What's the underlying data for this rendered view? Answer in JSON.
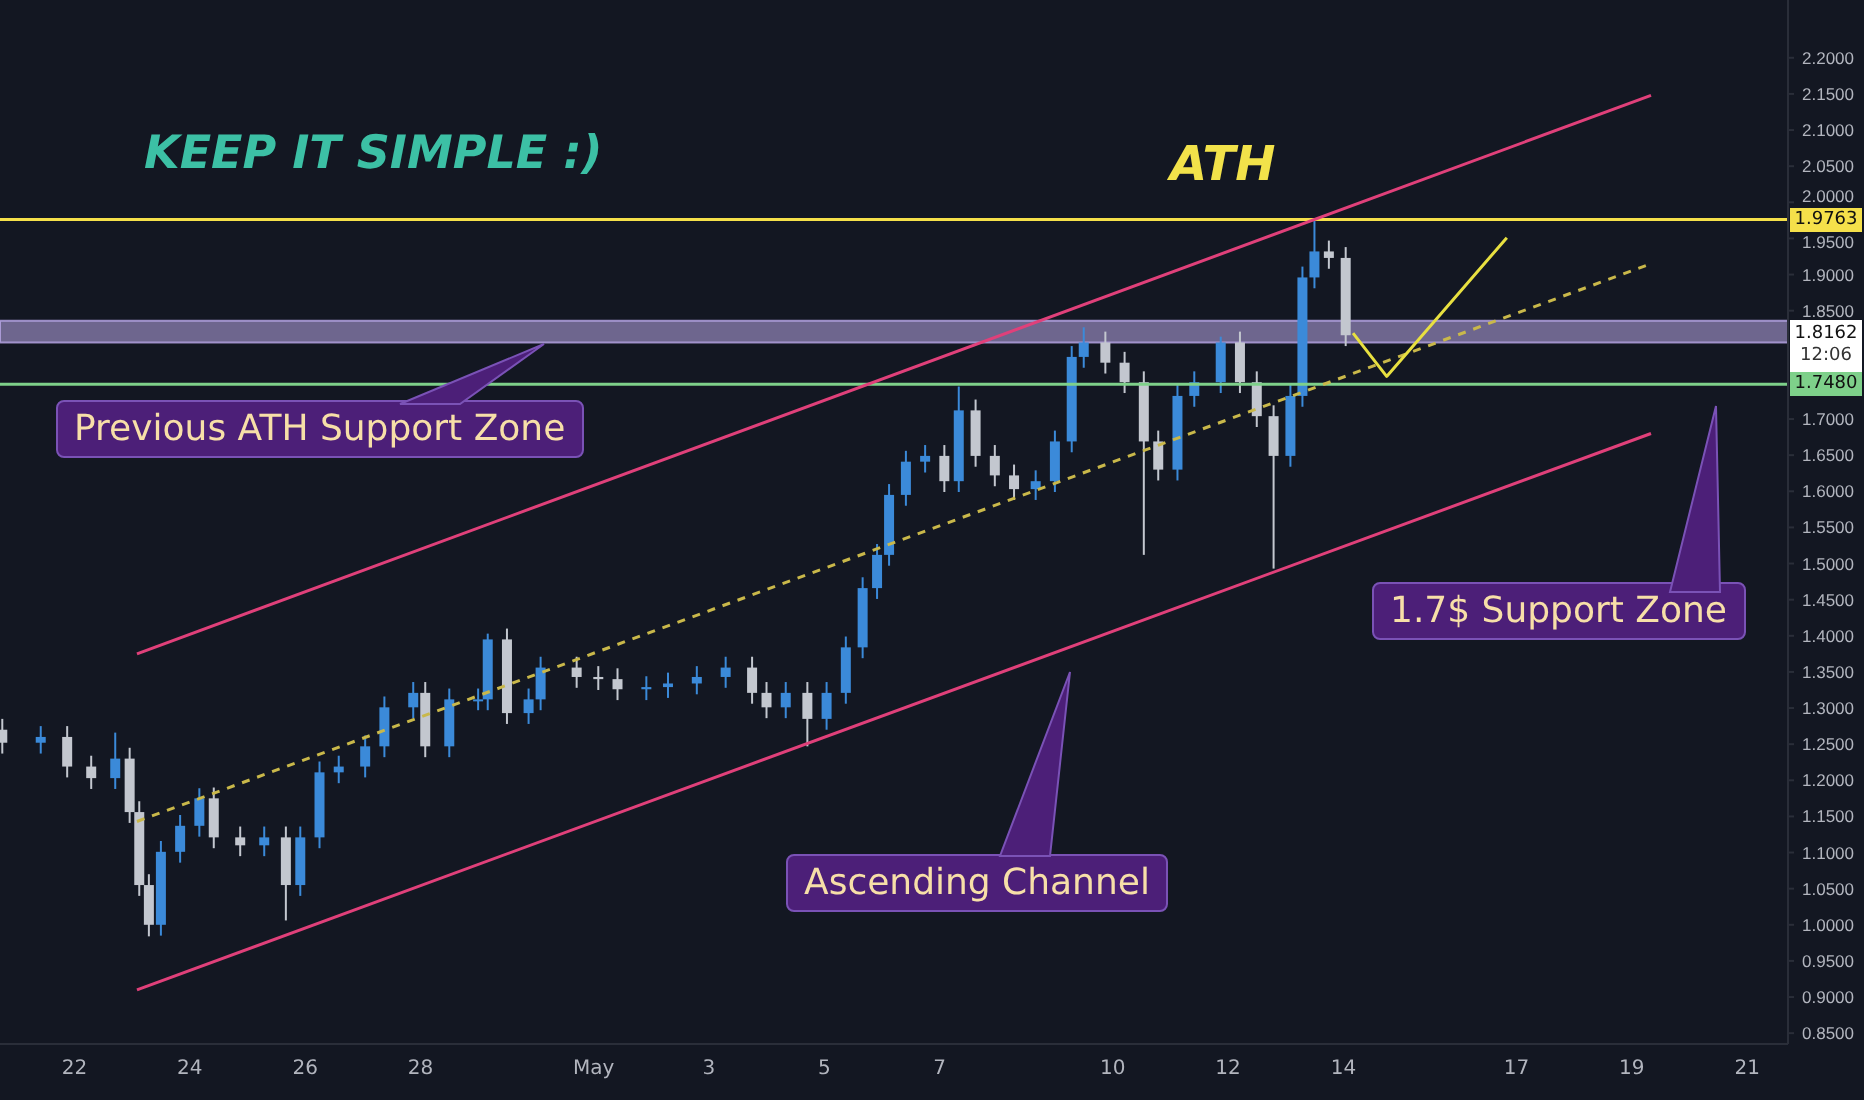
{
  "chart_data": {
    "type": "candlestick",
    "x": [
      "--04-20T18:00",
      "--04-21T10:00",
      "--04-21T21:00",
      "--04-22T07:00",
      "--04-22T17:00",
      "--04-22T23:00",
      "--04-23T03:00",
      "--04-23T07:00",
      "--04-23T12:00",
      "--04-23T20:00",
      "--04-24T04:00",
      "--04-24T10:00",
      "--04-24T21:00",
      "--04-25T07:00",
      "--04-25T16:00",
      "--04-25T22:00",
      "--04-26T06:00",
      "--04-26T14:00",
      "--04-27T01:00",
      "--04-27T09:00",
      "--04-27T21:00",
      "--04-28T02:00",
      "--04-28T12:00",
      "--04-29T00:00",
      "--04-29T04:00",
      "--04-29T12:00",
      "--04-29T21:00",
      "--04-30T02:00",
      "--04-30T17:00",
      "--05-01T02:00",
      "--05-01T10:00",
      "--05-01T22:00",
      "--05-02T07:00",
      "--05-02T19:00",
      "--05-03T07:00",
      "--05-03T18:00",
      "--05-04T00:00",
      "--05-04T08:00",
      "--05-04T17:00",
      "--05-05T01:00",
      "--05-05T09:00",
      "--05-05T16:00",
      "--05-05T22:00",
      "--05-06T03:00",
      "--05-06T10:00",
      "--05-06T18:00",
      "--05-07T02:00",
      "--05-07T08:00",
      "--05-07T15:00",
      "--05-07T23:00",
      "--05-08T07:00",
      "--05-08T16:00",
      "--05-09T00:00",
      "--05-09T07:00",
      "--05-09T12:00",
      "--05-09T21:00",
      "--05-10T05:00",
      "--05-10T13:00",
      "--05-10T19:00",
      "--05-11T03:00",
      "--05-11T10:00",
      "--05-11T21:00",
      "--05-12T05:00",
      "--05-12T12:00",
      "--05-12T19:00",
      "--05-13T02:00",
      "--05-13T07:00",
      "--05-13T12:00",
      "--05-13T18:00",
      "--05-14T01:00"
    ],
    "ohlc": [
      [
        1.27,
        1.285,
        1.237,
        1.252
      ],
      [
        1.252,
        1.275,
        1.237,
        1.26
      ],
      [
        1.26,
        1.275,
        1.204,
        1.219
      ],
      [
        1.219,
        1.234,
        1.188,
        1.203
      ],
      [
        1.203,
        1.266,
        1.188,
        1.23
      ],
      [
        1.23,
        1.245,
        1.141,
        1.156
      ],
      [
        1.156,
        1.171,
        1.04,
        1.055
      ],
      [
        1.055,
        1.07,
        0.984,
        1.0
      ],
      [
        1.0,
        1.116,
        0.985,
        1.101
      ],
      [
        1.101,
        1.152,
        1.086,
        1.137
      ],
      [
        1.137,
        1.189,
        1.122,
        1.175
      ],
      [
        1.175,
        1.19,
        1.106,
        1.121
      ],
      [
        1.121,
        1.136,
        1.095,
        1.11
      ],
      [
        1.11,
        1.136,
        1.095,
        1.121
      ],
      [
        1.121,
        1.136,
        1.006,
        1.055
      ],
      [
        1.055,
        1.136,
        1.04,
        1.121
      ],
      [
        1.121,
        1.226,
        1.106,
        1.211
      ],
      [
        1.211,
        1.234,
        1.196,
        1.219
      ],
      [
        1.219,
        1.262,
        1.204,
        1.247
      ],
      [
        1.247,
        1.316,
        1.232,
        1.301
      ],
      [
        1.301,
        1.336,
        1.286,
        1.321
      ],
      [
        1.321,
        1.336,
        1.232,
        1.247
      ],
      [
        1.247,
        1.327,
        1.232,
        1.312
      ],
      [
        1.312,
        1.327,
        1.297,
        1.312
      ],
      [
        1.312,
        1.403,
        1.297,
        1.395
      ],
      [
        1.395,
        1.41,
        1.278,
        1.293
      ],
      [
        1.293,
        1.327,
        1.278,
        1.312
      ],
      [
        1.312,
        1.371,
        1.297,
        1.356
      ],
      [
        1.356,
        1.371,
        1.328,
        1.343
      ],
      [
        1.343,
        1.358,
        1.325,
        1.34
      ],
      [
        1.34,
        1.355,
        1.311,
        1.326
      ],
      [
        1.326,
        1.344,
        1.311,
        1.329
      ],
      [
        1.329,
        1.349,
        1.314,
        1.334
      ],
      [
        1.334,
        1.358,
        1.319,
        1.343
      ],
      [
        1.343,
        1.371,
        1.328,
        1.356
      ],
      [
        1.356,
        1.371,
        1.306,
        1.321
      ],
      [
        1.321,
        1.336,
        1.286,
        1.301
      ],
      [
        1.301,
        1.336,
        1.286,
        1.321
      ],
      [
        1.321,
        1.336,
        1.247,
        1.285
      ],
      [
        1.285,
        1.336,
        1.27,
        1.321
      ],
      [
        1.321,
        1.399,
        1.306,
        1.384
      ],
      [
        1.384,
        1.481,
        1.369,
        1.466
      ],
      [
        1.466,
        1.527,
        1.451,
        1.512
      ],
      [
        1.512,
        1.61,
        1.497,
        1.595
      ],
      [
        1.595,
        1.656,
        1.58,
        1.641
      ],
      [
        1.641,
        1.664,
        1.626,
        1.649
      ],
      [
        1.649,
        1.664,
        1.599,
        1.614
      ],
      [
        1.614,
        1.745,
        1.599,
        1.712
      ],
      [
        1.712,
        1.727,
        1.634,
        1.649
      ],
      [
        1.649,
        1.664,
        1.607,
        1.622
      ],
      [
        1.622,
        1.637,
        1.588,
        1.603
      ],
      [
        1.603,
        1.629,
        1.588,
        1.614
      ],
      [
        1.614,
        1.684,
        1.599,
        1.669
      ],
      [
        1.669,
        1.801,
        1.654,
        1.786
      ],
      [
        1.786,
        1.827,
        1.771,
        1.806
      ],
      [
        1.806,
        1.821,
        1.763,
        1.778
      ],
      [
        1.778,
        1.793,
        1.736,
        1.751
      ],
      [
        1.751,
        1.766,
        1.512,
        1.669
      ],
      [
        1.669,
        1.684,
        1.615,
        1.63
      ],
      [
        1.63,
        1.747,
        1.615,
        1.732
      ],
      [
        1.732,
        1.766,
        1.717,
        1.751
      ],
      [
        1.751,
        1.814,
        1.736,
        1.806
      ],
      [
        1.806,
        1.821,
        1.736,
        1.751
      ],
      [
        1.751,
        1.766,
        1.689,
        1.704
      ],
      [
        1.704,
        1.719,
        1.493,
        1.649
      ],
      [
        1.649,
        1.747,
        1.634,
        1.732
      ],
      [
        1.732,
        1.911,
        1.717,
        1.896
      ],
      [
        1.896,
        1.976,
        1.881,
        1.932
      ],
      [
        1.932,
        1.947,
        1.908,
        1.923
      ],
      [
        1.923,
        1.938,
        1.801,
        1.816
      ]
    ],
    "colors": [
      "#c3c7cf",
      "#3b8ad9",
      "#c3c7cf",
      "#c3c7cf",
      "#3b8ad9",
      "#c3c7cf",
      "#c3c7cf",
      "#c3c7cf",
      "#3b8ad9",
      "#3b8ad9",
      "#3b8ad9",
      "#c3c7cf",
      "#c3c7cf",
      "#3b8ad9",
      "#c3c7cf",
      "#3b8ad9",
      "#3b8ad9",
      "#3b8ad9",
      "#3b8ad9",
      "#3b8ad9",
      "#3b8ad9",
      "#c3c7cf",
      "#3b8ad9",
      "#3b8ad9",
      "#3b8ad9",
      "#c3c7cf",
      "#3b8ad9",
      "#3b8ad9",
      "#c3c7cf",
      "#c3c7cf",
      "#c3c7cf",
      "#3b8ad9",
      "#3b8ad9",
      "#3b8ad9",
      "#3b8ad9",
      "#c3c7cf",
      "#c3c7cf",
      "#3b8ad9",
      "#c3c7cf",
      "#3b8ad9",
      "#3b8ad9",
      "#3b8ad9",
      "#3b8ad9",
      "#3b8ad9",
      "#3b8ad9",
      "#3b8ad9",
      "#c3c7cf",
      "#3b8ad9",
      "#c3c7cf",
      "#c3c7cf",
      "#c3c7cf",
      "#3b8ad9",
      "#3b8ad9",
      "#3b8ad9",
      "#3b8ad9",
      "#c3c7cf",
      "#c3c7cf",
      "#c3c7cf",
      "#c3c7cf",
      "#3b8ad9",
      "#3b8ad9",
      "#3b8ad9",
      "#c3c7cf",
      "#c3c7cf",
      "#c3c7cf",
      "#3b8ad9",
      "#3b8ad9",
      "#3b8ad9",
      "#c3c7cf",
      "#c3c7cf"
    ],
    "series": [
      {
        "type": "line",
        "color": "#e0407a",
        "line_style": "solid",
        "x": [
          "--04-23T02:00",
          "--05-19T08:00"
        ],
        "values": [
          1.375,
          2.148
        ]
      },
      {
        "type": "line",
        "color": "#e0407a",
        "line_style": "solid",
        "x": [
          "--04-23T02:00",
          "--05-19T08:00"
        ],
        "values": [
          0.91,
          1.68
        ]
      },
      {
        "type": "line",
        "color": "#c9b84a",
        "line_style": "dashed",
        "x": [
          "--04-23T02:00",
          "--05-19T08:00"
        ],
        "values": [
          1.143,
          1.915
        ]
      },
      {
        "type": "line",
        "color": "#e8e040",
        "line_style": "solid",
        "x": [
          "--05-14T04:00",
          "--05-14T18:00",
          "--05-16T20:00"
        ],
        "values": [
          1.819,
          1.759,
          1.951
        ]
      }
    ],
    "ref_lines": [
      {
        "axis": "y",
        "value": 1.9763,
        "label": "1.9763",
        "color": "#f5e04a"
      },
      {
        "axis": "y",
        "value": 1.748,
        "label": "1.7480",
        "color": "#7ed08a"
      }
    ],
    "bands": [
      {
        "axis": "y",
        "from": 1.806,
        "to": 1.836,
        "label": "Previous ATH Support Zone",
        "color": "#b9a8e8"
      }
    ],
    "annotations": [
      "KEEP IT SIMPLE :)",
      "ATH",
      "1.7$ Support Zone",
      "Ascending Channel",
      "1.8162",
      "12:06"
    ],
    "xlim": [
      "--04-20T17:00",
      "--05-21T17:00"
    ],
    "xticks": [
      {
        "value": "--04-22",
        "label": "22"
      },
      {
        "value": "--04-24",
        "label": "24"
      },
      {
        "value": "--04-26",
        "label": "26"
      },
      {
        "value": "--04-28",
        "label": "28"
      },
      {
        "value": "--05-01",
        "label": "May"
      },
      {
        "value": "--05-03",
        "label": "3"
      },
      {
        "value": "--05-05",
        "label": "5"
      },
      {
        "value": "--05-07",
        "label": "7"
      },
      {
        "value": "--05-10",
        "label": "10"
      },
      {
        "value": "--05-12",
        "label": "12"
      },
      {
        "value": "--05-14",
        "label": "14"
      },
      {
        "value": "--05-17",
        "label": "17"
      },
      {
        "value": "--05-19",
        "label": "19"
      },
      {
        "value": "--05-21",
        "label": "21"
      }
    ],
    "ylim": [
      0.835,
      2.28
    ],
    "yticks": [
      {
        "value": 0.85,
        "label": "0.8500"
      },
      {
        "value": 0.9,
        "label": "0.9000"
      },
      {
        "value": 0.95,
        "label": "0.9500"
      },
      {
        "value": 1.0,
        "label": "1.0000"
      },
      {
        "value": 1.05,
        "label": "1.0500"
      },
      {
        "value": 1.1,
        "label": "1.1000"
      },
      {
        "value": 1.15,
        "label": "1.1500"
      },
      {
        "value": 1.2,
        "label": "1.2000"
      },
      {
        "value": 1.25,
        "label": "1.2500"
      },
      {
        "value": 1.3,
        "label": "1.3000"
      },
      {
        "value": 1.35,
        "label": "1.3500"
      },
      {
        "value": 1.4,
        "label": "1.4000"
      },
      {
        "value": 1.45,
        "label": "1.4500"
      },
      {
        "value": 1.5,
        "label": "1.5000"
      },
      {
        "value": 1.55,
        "label": "1.5500"
      },
      {
        "value": 1.6,
        "label": "1.6000"
      },
      {
        "value": 1.65,
        "label": "1.6500"
      },
      {
        "value": 1.7,
        "label": "1.7000"
      },
      {
        "value": 1.85,
        "label": "1.8500"
      },
      {
        "value": 1.9,
        "label": "1.9000"
      },
      {
        "value": 1.95,
        "label": "1.9500"
      },
      {
        "value": 2.0,
        "label": "2.0000"
      },
      {
        "value": 2.05,
        "label": "2.0500"
      },
      {
        "value": 2.1,
        "label": "2.1000"
      },
      {
        "value": 2.15,
        "label": "2.1500"
      },
      {
        "value": 2.2,
        "label": "2.2000"
      }
    ]
  }
}
